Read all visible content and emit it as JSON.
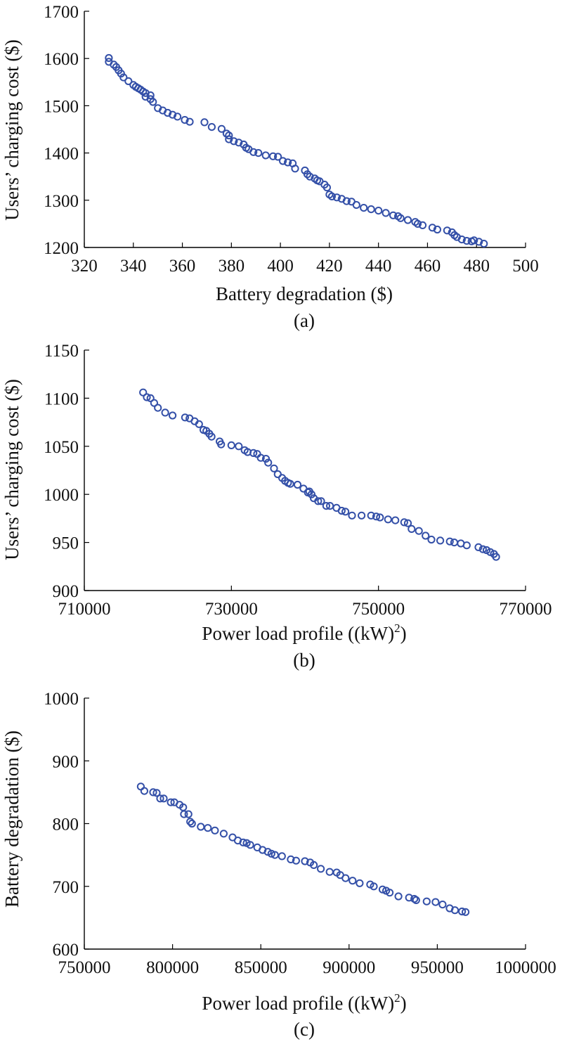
{
  "chart_data": [
    {
      "type": "scatter",
      "panel_label": "(a)",
      "xlabel": "Battery degradation ($)",
      "ylabel": "Users’ charging cost ($)",
      "xlabel_sup": "",
      "xlabel_tail": "",
      "xlim": [
        320,
        500
      ],
      "ylim": [
        1200,
        1700
      ],
      "xticks": [
        320,
        340,
        360,
        380,
        400,
        420,
        440,
        460,
        480,
        500
      ],
      "yticks": [
        1200,
        1300,
        1400,
        1500,
        1600,
        1700
      ],
      "marker_color": "#3450a8",
      "points": [
        [
          330,
          1601
        ],
        [
          330,
          1593
        ],
        [
          332,
          1587
        ],
        [
          333,
          1582
        ],
        [
          334,
          1575
        ],
        [
          335,
          1568
        ],
        [
          336,
          1560
        ],
        [
          338,
          1552
        ],
        [
          340,
          1544
        ],
        [
          341,
          1540
        ],
        [
          342,
          1537
        ],
        [
          343,
          1534
        ],
        [
          344,
          1530
        ],
        [
          345,
          1527
        ],
        [
          345,
          1519
        ],
        [
          347,
          1522
        ],
        [
          347,
          1514
        ],
        [
          348,
          1508
        ],
        [
          350,
          1495
        ],
        [
          352,
          1490
        ],
        [
          354,
          1485
        ],
        [
          356,
          1481
        ],
        [
          358,
          1477
        ],
        [
          361,
          1470
        ],
        [
          363,
          1466
        ],
        [
          369,
          1465
        ],
        [
          372,
          1455
        ],
        [
          376,
          1451
        ],
        [
          378,
          1441
        ],
        [
          379,
          1437
        ],
        [
          379,
          1429
        ],
        [
          381,
          1425
        ],
        [
          383,
          1422
        ],
        [
          385,
          1418
        ],
        [
          386,
          1411
        ],
        [
          387,
          1408
        ],
        [
          389,
          1402
        ],
        [
          391,
          1400
        ],
        [
          394,
          1395
        ],
        [
          397,
          1393
        ],
        [
          399,
          1392
        ],
        [
          401,
          1383
        ],
        [
          403,
          1380
        ],
        [
          405,
          1378
        ],
        [
          406,
          1367
        ],
        [
          410,
          1363
        ],
        [
          411,
          1355
        ],
        [
          412,
          1350
        ],
        [
          414,
          1346
        ],
        [
          415,
          1342
        ],
        [
          416,
          1340
        ],
        [
          418,
          1333
        ],
        [
          419,
          1327
        ],
        [
          420,
          1312
        ],
        [
          421,
          1308
        ],
        [
          423,
          1306
        ],
        [
          425,
          1303
        ],
        [
          427,
          1298
        ],
        [
          429,
          1297
        ],
        [
          431,
          1290
        ],
        [
          434,
          1284
        ],
        [
          437,
          1281
        ],
        [
          440,
          1278
        ],
        [
          443,
          1273
        ],
        [
          446,
          1268
        ],
        [
          448,
          1266
        ],
        [
          449,
          1262
        ],
        [
          452,
          1258
        ],
        [
          455,
          1254
        ],
        [
          456,
          1250
        ],
        [
          458,
          1247
        ],
        [
          462,
          1242
        ],
        [
          464,
          1238
        ],
        [
          468,
          1236
        ],
        [
          470,
          1232
        ],
        [
          471,
          1226
        ],
        [
          472,
          1222
        ],
        [
          474,
          1217
        ],
        [
          476,
          1214
        ],
        [
          478,
          1213
        ],
        [
          479,
          1215
        ],
        [
          481,
          1212
        ],
        [
          483,
          1208
        ]
      ]
    },
    {
      "type": "scatter",
      "panel_label": "(b)",
      "xlabel": "Power load profile ((kW)",
      "xlabel_sup": "2",
      "xlabel_tail": ")",
      "ylabel": "Users’ charging cost ($)",
      "xlim": [
        710000,
        770000
      ],
      "ylim": [
        900,
        1150
      ],
      "xticks": [
        710000,
        730000,
        750000,
        770000
      ],
      "yticks": [
        900,
        950,
        1000,
        1050,
        1100,
        1150
      ],
      "marker_color": "#3450a8",
      "points": [
        [
          718000,
          1106
        ],
        [
          718500,
          1101
        ],
        [
          719000,
          1100
        ],
        [
          719500,
          1095
        ],
        [
          720000,
          1090
        ],
        [
          721000,
          1085
        ],
        [
          722000,
          1082
        ],
        [
          723700,
          1080
        ],
        [
          724300,
          1079
        ],
        [
          725000,
          1076
        ],
        [
          725600,
          1073
        ],
        [
          726200,
          1067
        ],
        [
          726600,
          1066
        ],
        [
          727000,
          1063
        ],
        [
          727300,
          1060
        ],
        [
          728400,
          1055
        ],
        [
          728600,
          1052
        ],
        [
          730000,
          1051
        ],
        [
          731000,
          1050
        ],
        [
          731800,
          1046
        ],
        [
          732200,
          1044
        ],
        [
          733000,
          1043
        ],
        [
          733500,
          1042
        ],
        [
          734000,
          1038
        ],
        [
          734700,
          1037
        ],
        [
          735000,
          1033
        ],
        [
          735800,
          1027
        ],
        [
          736300,
          1021
        ],
        [
          736900,
          1017
        ],
        [
          737300,
          1014
        ],
        [
          737700,
          1012
        ],
        [
          738000,
          1011
        ],
        [
          739000,
          1010
        ],
        [
          739800,
          1006
        ],
        [
          740400,
          1002
        ],
        [
          740600,
          1003
        ],
        [
          740900,
          1000
        ],
        [
          741200,
          996
        ],
        [
          741800,
          993
        ],
        [
          742200,
          993
        ],
        [
          742900,
          988
        ],
        [
          743400,
          988
        ],
        [
          744300,
          986
        ],
        [
          745000,
          983
        ],
        [
          745500,
          982
        ],
        [
          746400,
          978
        ],
        [
          747700,
          978
        ],
        [
          749000,
          978
        ],
        [
          749700,
          977
        ],
        [
          750200,
          976
        ],
        [
          751300,
          974
        ],
        [
          752300,
          973
        ],
        [
          753500,
          971
        ],
        [
          754000,
          970
        ],
        [
          754500,
          964
        ],
        [
          755500,
          962
        ],
        [
          756400,
          957
        ],
        [
          757200,
          953
        ],
        [
          758400,
          952
        ],
        [
          759700,
          951
        ],
        [
          760300,
          950
        ],
        [
          761200,
          949
        ],
        [
          762000,
          947
        ],
        [
          763600,
          945
        ],
        [
          764200,
          943
        ],
        [
          764700,
          942
        ],
        [
          765200,
          940
        ],
        [
          765700,
          938
        ],
        [
          766000,
          935
        ]
      ]
    },
    {
      "type": "scatter",
      "panel_label": "(c)",
      "xlabel": "Power load profile ((kW)",
      "xlabel_sup": "2",
      "xlabel_tail": ")",
      "ylabel": "Battery degradation ($)",
      "xlim": [
        750000,
        1000000
      ],
      "ylim": [
        600,
        1000
      ],
      "xticks": [
        750000,
        800000,
        850000,
        900000,
        950000,
        1000000
      ],
      "yticks": [
        600,
        700,
        800,
        900,
        1000
      ],
      "marker_color": "#3450a8",
      "points": [
        [
          782000,
          859
        ],
        [
          784000,
          852
        ],
        [
          789000,
          850
        ],
        [
          791000,
          849
        ],
        [
          793000,
          840
        ],
        [
          795000,
          840
        ],
        [
          799000,
          834
        ],
        [
          801000,
          834
        ],
        [
          804000,
          830
        ],
        [
          806000,
          826
        ],
        [
          806500,
          815
        ],
        [
          809000,
          815
        ],
        [
          810000,
          803
        ],
        [
          811000,
          800
        ],
        [
          816000,
          795
        ],
        [
          820000,
          793
        ],
        [
          824000,
          789
        ],
        [
          829000,
          784
        ],
        [
          834000,
          778
        ],
        [
          837000,
          773
        ],
        [
          840000,
          770
        ],
        [
          842000,
          769
        ],
        [
          844000,
          766
        ],
        [
          848000,
          762
        ],
        [
          851000,
          758
        ],
        [
          854000,
          755
        ],
        [
          856000,
          752
        ],
        [
          858000,
          750
        ],
        [
          862000,
          748
        ],
        [
          867000,
          743
        ],
        [
          870000,
          741
        ],
        [
          875000,
          740
        ],
        [
          878000,
          738
        ],
        [
          880000,
          734
        ],
        [
          884000,
          728
        ],
        [
          889000,
          723
        ],
        [
          893000,
          722
        ],
        [
          895000,
          718
        ],
        [
          898000,
          713
        ],
        [
          902000,
          709
        ],
        [
          906000,
          705
        ],
        [
          912000,
          703
        ],
        [
          914000,
          700
        ],
        [
          919000,
          695
        ],
        [
          921000,
          693
        ],
        [
          923000,
          690
        ],
        [
          928000,
          684
        ],
        [
          934000,
          682
        ],
        [
          937000,
          680
        ],
        [
          938000,
          678
        ],
        [
          944000,
          676
        ],
        [
          949000,
          675
        ],
        [
          953000,
          671
        ],
        [
          957000,
          665
        ],
        [
          960000,
          662
        ],
        [
          964000,
          660
        ],
        [
          966000,
          659
        ]
      ]
    }
  ]
}
